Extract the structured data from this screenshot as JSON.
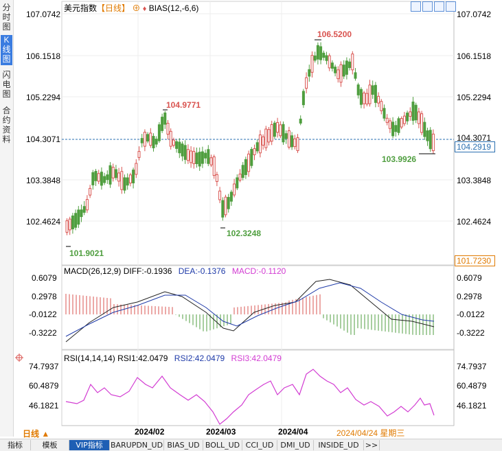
{
  "side_tabs": [
    "分时图",
    "K线图",
    "闪电图",
    "合约资料"
  ],
  "active_side_tab": 1,
  "header": {
    "title": "美元指数",
    "period": "【日线】",
    "indicator": "BIAS(12,-6,6)"
  },
  "main_axis": {
    "labels": [
      "107.0742",
      "106.1518",
      "105.2294",
      "104.3071",
      "103.3848",
      "102.4624"
    ],
    "current_price": "104.2919",
    "lowest_label": "101.7230"
  },
  "annotations": {
    "high": "106.5200",
    "low": "101.9021",
    "mid_high": "104.9771",
    "mid_low": "102.3248",
    "recent_low": "103.9926"
  },
  "macd": {
    "title": "MACD(26,12,9)",
    "diff": "DIFF:-0.1936",
    "dea": "DEA:-0.1376",
    "macd": "MACD:-0.1120",
    "axis": [
      "0.6079",
      "0.2978",
      "-0.0122",
      "-0.3222"
    ]
  },
  "rsi": {
    "title": "RSI(14,14,14)",
    "rsi1": "RSI1:42.0479",
    "rsi2": "RSI2:42.0479",
    "rsi3": "RSI3:42.0479",
    "axis": [
      "74.7937",
      "60.4879",
      "46.1821"
    ]
  },
  "time_axis": {
    "period_btn": "日线 ▲",
    "labels": [
      "2024/02",
      "2024/03",
      "2024/04"
    ],
    "cursor": "2024/04/24 星期三"
  },
  "bottom_tabs": [
    "指标",
    "模板",
    "VIP指标",
    "BARUPDN_UD",
    "BIAS_UD",
    "BOLL_UD",
    "CCI_UD",
    "DMI_UD",
    "INSIDE_UD",
    ">>"
  ],
  "colors": {
    "up": "#d9534f",
    "down": "#4f9e3f",
    "price_line": "#2a6fb0",
    "diff": "#222222",
    "dea": "#1e3aa8",
    "rsi": "#d23bd2",
    "accent": "#e07a00"
  }
}
